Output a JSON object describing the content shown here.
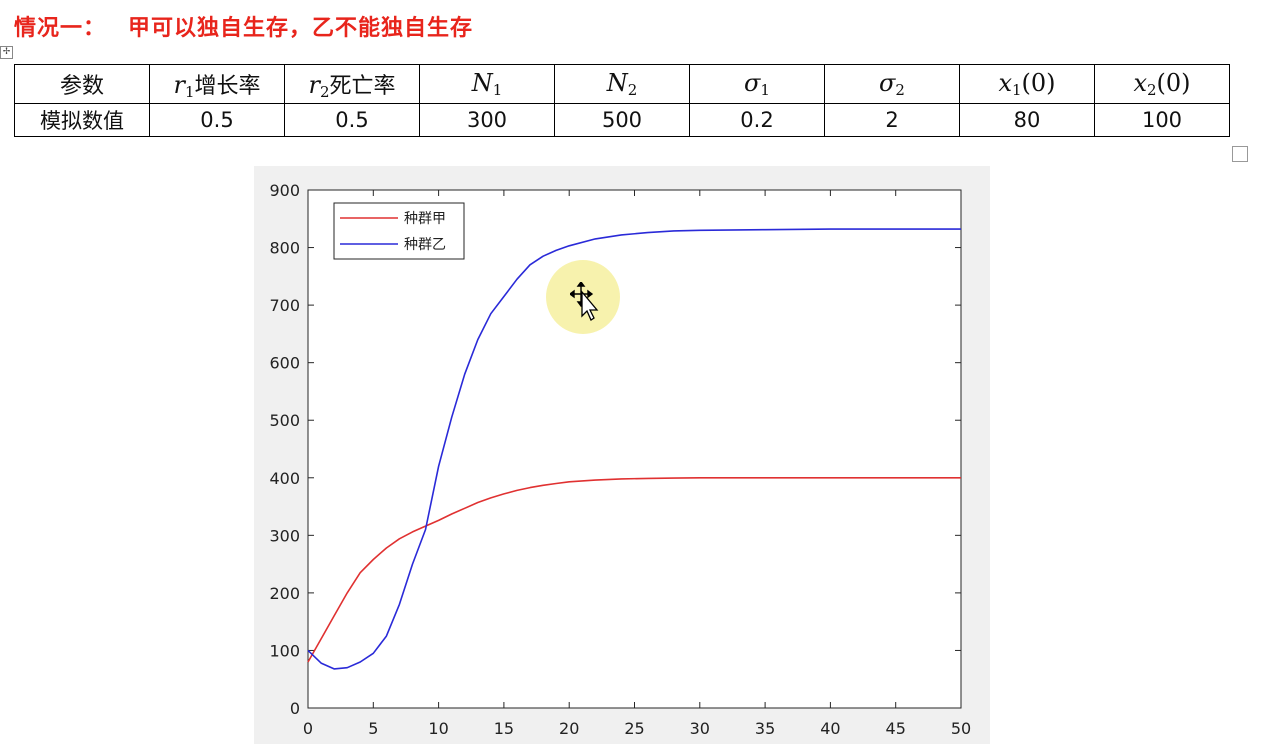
{
  "heading": {
    "part1": "情况一：",
    "part2": "甲可以独自生存，乙不能独自生存"
  },
  "table": {
    "header_label": "参数",
    "value_label": "模拟数值",
    "r1_text": "增长率",
    "r2_text": "死亡率",
    "values": [
      "0.5",
      "0.5",
      "300",
      "500",
      "0.2",
      "2",
      "80",
      "100"
    ]
  },
  "chart_data": {
    "type": "line",
    "x_ticks": [
      "0",
      "5",
      "10",
      "15",
      "20",
      "25",
      "30",
      "35",
      "40",
      "45",
      "50"
    ],
    "y_ticks": [
      "0",
      "100",
      "200",
      "300",
      "400",
      "500",
      "600",
      "700",
      "800",
      "900"
    ],
    "xlim": [
      0,
      50
    ],
    "ylim": [
      0,
      900
    ],
    "grid": false,
    "legend_position": "top-left",
    "series": [
      {
        "name": "种群甲",
        "color": "#e03131",
        "x": [
          0,
          1,
          2,
          3,
          4,
          5,
          6,
          7,
          8,
          9,
          10,
          11,
          12,
          13,
          14,
          15,
          16,
          17,
          18,
          19,
          20,
          22,
          24,
          26,
          28,
          30,
          35,
          40,
          45,
          50
        ],
        "y": [
          80,
          120,
          160,
          200,
          235,
          258,
          278,
          294,
          306,
          316,
          326,
          337,
          347,
          357,
          365,
          372,
          378,
          383,
          387,
          390,
          393,
          396,
          398,
          399,
          399.5,
          400,
          400,
          400,
          400,
          400
        ]
      },
      {
        "name": "种群乙",
        "color": "#2a2ad8",
        "x": [
          0,
          1,
          2,
          3,
          4,
          5,
          6,
          7,
          8,
          9,
          10,
          11,
          12,
          13,
          14,
          15,
          16,
          17,
          18,
          19,
          20,
          22,
          24,
          26,
          28,
          30,
          35,
          40,
          45,
          50
        ],
        "y": [
          100,
          78,
          68,
          70,
          80,
          95,
          125,
          180,
          250,
          310,
          420,
          505,
          580,
          640,
          685,
          715,
          745,
          770,
          785,
          795,
          803,
          815,
          822,
          826,
          829,
          830,
          831,
          832,
          832,
          832
        ]
      }
    ]
  }
}
